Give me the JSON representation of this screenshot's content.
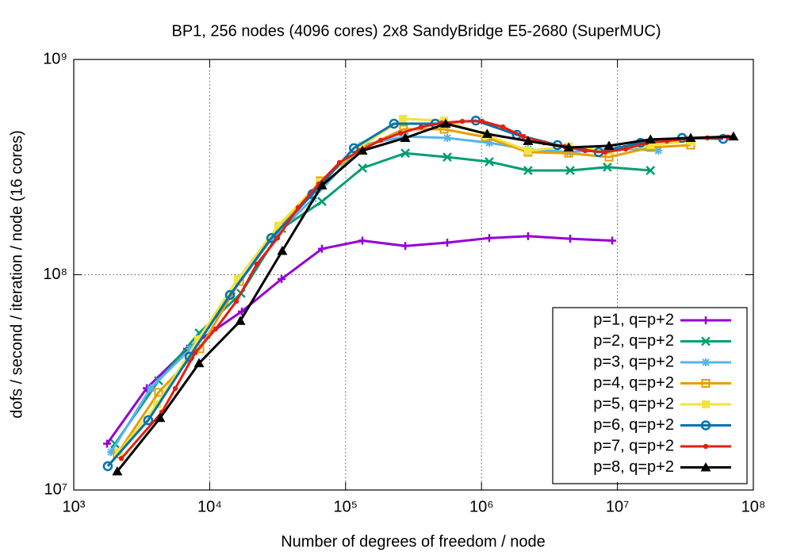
{
  "chart_data": {
    "type": "line",
    "title": "BP1, 256 nodes (4096 cores) 2x8 SandyBridge E5-2680 (SuperMUC)",
    "x_label": "Number of degrees of freedom / node",
    "y_label": "dofs / second / iteration / node (16 cores)",
    "x_scale": "log",
    "y_scale": "log",
    "grid": true,
    "legend_position": "lower right",
    "xlim": [
      1000,
      100000000
    ],
    "xticks": [
      {
        "value": 1000,
        "label": "10³"
      },
      {
        "value": 10000,
        "label": "10⁴"
      },
      {
        "value": 100000,
        "label": "10⁵"
      },
      {
        "value": 1000000,
        "label": "10⁶"
      },
      {
        "value": 10000000,
        "label": "10⁷"
      },
      {
        "value": 100000000,
        "label": "10⁸"
      }
    ],
    "ylim": [
      10000000,
      1000000000
    ],
    "yticks": [
      {
        "value": 10000000,
        "label": "10⁷"
      },
      {
        "value": 100000000,
        "label": "10⁸"
      },
      {
        "value": 1000000000,
        "label": "10⁹"
      }
    ],
    "series": [
      {
        "name": "p=1, q=p+2",
        "color": "#9400d3",
        "marker": "plus",
        "x": [
          1758,
          3443,
          6823,
          17260,
          33800,
          67000,
          133000,
          275000,
          560000,
          1140000,
          2200000,
          4490000,
          9160000
        ],
        "values": [
          16400000,
          29700000,
          45300000,
          67500000,
          95500000,
          132000000,
          144000000,
          136000000,
          141000000,
          148000000,
          151000000,
          147000000,
          144000000
        ]
      },
      {
        "name": "p=2, q=p+2",
        "color": "#009e73",
        "marker": "cross",
        "x": [
          2010,
          4210,
          8360,
          17000,
          33800,
          67000,
          133000,
          275000,
          560000,
          1140000,
          2200000,
          4490000,
          8430000,
          17500000
        ],
        "values": [
          16400000,
          32200000,
          53600000,
          81900000,
          164000000,
          219000000,
          313000000,
          367000000,
          352000000,
          335000000,
          305000000,
          305000000,
          316000000,
          305000000
        ]
      },
      {
        "name": "p=3, q=p+2",
        "color": "#56b4e9",
        "marker": "star",
        "x": [
          1880,
          3680,
          7210,
          14500,
          28800,
          57800,
          133000,
          275000,
          560000,
          1140000,
          2200000,
          4490000,
          10000000,
          20000000
        ],
        "values": [
          15000000,
          29700000,
          45300000,
          81900000,
          148000000,
          226000000,
          400000000,
          439000000,
          432000000,
          410000000,
          383000000,
          371000000,
          387000000,
          377000000
        ]
      },
      {
        "name": "p=4, q=p+2",
        "color": "#e69f00",
        "marker": "square-open",
        "x": [
          2090,
          4210,
          8470,
          16600,
          32900,
          65200,
          129000,
          267000,
          531000,
          1070000,
          2200000,
          4380000,
          8670000,
          17500000,
          34600000
        ],
        "values": [
          14700000,
          28400000,
          45300000,
          93000000,
          166000000,
          273000000,
          384000000,
          474000000,
          474000000,
          436000000,
          371000000,
          367000000,
          352000000,
          390000000,
          400000000
        ]
      },
      {
        "name": "p=5, q=p+2",
        "color": "#f0e442",
        "marker": "square",
        "x": [
          2150,
          4100,
          8240,
          16100,
          32000,
          64400,
          129000,
          264000,
          531000,
          1070000,
          2200000,
          4380000,
          8670000,
          17500000,
          34600000
        ],
        "values": [
          15000000,
          25000000,
          50100000,
          95500000,
          169000000,
          269000000,
          394000000,
          530000000,
          520000000,
          447000000,
          377000000,
          394000000,
          377000000,
          400000000,
          418000000
        ]
      },
      {
        "name": "p=6, q=p+2",
        "color": "#0072b2",
        "marker": "circle-open",
        "x": [
          1780,
          3530,
          7110,
          14100,
          28400,
          57000,
          115000,
          227000,
          457000,
          908000,
          1820000,
          3620000,
          7280000,
          14800000,
          29900000,
          60000000
        ],
        "values": [
          12900000,
          21100000,
          41600000,
          80500000,
          148000000,
          237000000,
          387000000,
          503000000,
          503000000,
          520000000,
          447000000,
          400000000,
          371000000,
          410000000,
          432000000,
          428000000
        ]
      },
      {
        "name": "p=7, q=p+2",
        "color": "#e51e10",
        "marker": "dot",
        "x": [
          2239,
          4446,
          5585,
          7816,
          11070,
          15700,
          22280,
          31550,
          44770,
          63530,
          90150,
          127700,
          181100,
          253500,
          359700,
          510500,
          722800,
          1012000,
          1435000,
          2033000,
          2884000,
          4080000,
          5790000,
          8110000,
          11500000,
          16300000,
          23100000,
          32400000,
          45900000,
          65000000
        ],
        "values": [
          14000000,
          23000000,
          29600000,
          43400000,
          56000000,
          75200000,
          112000000,
          148000000,
          205000000,
          264000000,
          332000000,
          377000000,
          421000000,
          454000000,
          486000000,
          507000000,
          516000000,
          516000000,
          486000000,
          439000000,
          410000000,
          394000000,
          377000000,
          371000000,
          384000000,
          410000000,
          418000000,
          428000000,
          432000000,
          436000000
        ]
      },
      {
        "name": "p=8, q=p+2",
        "color": "#000000",
        "marker": "triangle",
        "x": [
          2090,
          4320,
          8360,
          16800,
          34200,
          67000,
          133000,
          275000,
          545000,
          1100000,
          2200000,
          4380000,
          8670000,
          17500000,
          34600000,
          71400000
        ],
        "values": [
          12200000,
          21600000,
          38800000,
          61000000,
          129000000,
          260000000,
          377000000,
          432000000,
          503000000,
          451000000,
          418000000,
          390000000,
          397000000,
          425000000,
          432000000,
          439000000
        ]
      }
    ]
  }
}
